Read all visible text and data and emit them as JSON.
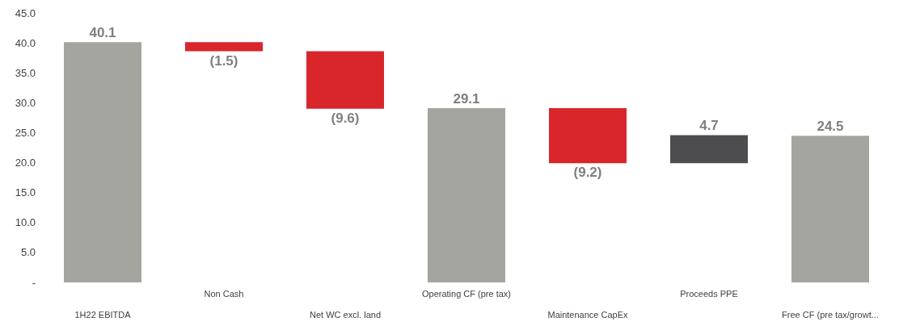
{
  "chart_data": {
    "type": "bar",
    "categories": [
      "1H22 EBITDA",
      "Non Cash",
      "Net WC excl. land",
      "Operating CF (pre tax)",
      "Maintenance CapEx",
      "Proceeds PPE",
      "Free CF (pre tax/growt..."
    ],
    "values": [
      40.1,
      -1.5,
      -9.6,
      29.1,
      -9.2,
      4.7,
      24.5
    ],
    "base": [
      0,
      40.1,
      38.6,
      0,
      29.1,
      19.9,
      0
    ],
    "colors": [
      "#a5a5a0",
      "#d9262b",
      "#d9262b",
      "#a5a5a0",
      "#d9262b",
      "#4d4d4f",
      "#a5a5a0"
    ],
    "value_labels": [
      "40.1",
      "(1.5)",
      "(9.6)",
      "29.1",
      "(9.2)",
      "4.7",
      "24.5"
    ],
    "ylim": [
      0,
      45
    ],
    "yticks": [
      {
        "value": 0,
        "label": "-"
      },
      {
        "value": 5,
        "label": "5.0"
      },
      {
        "value": 10,
        "label": "10.0"
      },
      {
        "value": 15,
        "label": "15.0"
      },
      {
        "value": 20,
        "label": "20.0"
      },
      {
        "value": 25,
        "label": "25.0"
      },
      {
        "value": 30,
        "label": "30.0"
      },
      {
        "value": 35,
        "label": "35.0"
      },
      {
        "value": 40,
        "label": "40.0"
      },
      {
        "value": 45,
        "label": "45.0"
      }
    ],
    "grid": false
  }
}
